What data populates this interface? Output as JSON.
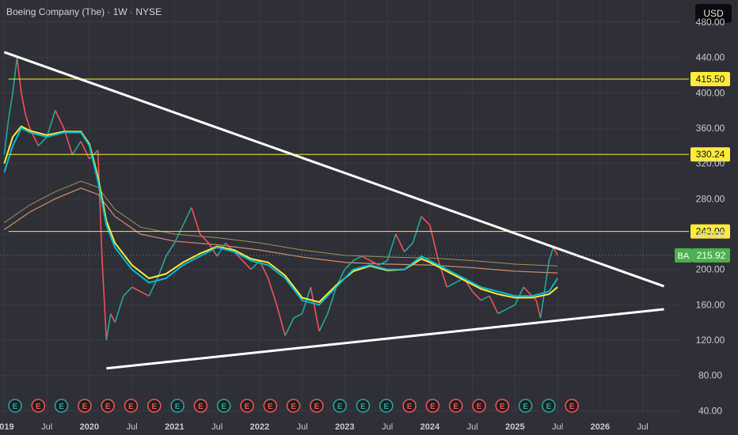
{
  "header": {
    "title": "Boeing Company (The) · 1W · NYSE"
  },
  "currency_button": "USD",
  "chart_data": {
    "type": "line",
    "title": "",
    "ticker": "BA",
    "last_price": 215.92,
    "last_price_label": "215.92",
    "ylim": [
      35,
      505
    ],
    "xlim": [
      2018.95,
      2026.95
    ],
    "y_ticks": [
      "480.00",
      "440.00",
      "400.00",
      "360.00",
      "320.00",
      "280.00",
      "240.00",
      "200.00",
      "160.00",
      "120.00",
      "80.00",
      "40.00"
    ],
    "x_ticks": [
      {
        "label": "2019",
        "x": 2019.0
      },
      {
        "label": "Jul",
        "x": 2019.5
      },
      {
        "label": "2020",
        "x": 2020.0
      },
      {
        "label": "Jul",
        "x": 2020.5
      },
      {
        "label": "2021",
        "x": 2021.0
      },
      {
        "label": "Jul",
        "x": 2021.5
      },
      {
        "label": "2022",
        "x": 2022.0
      },
      {
        "label": "Jul",
        "x": 2022.5
      },
      {
        "label": "2023",
        "x": 2023.0
      },
      {
        "label": "Jul",
        "x": 2023.5
      },
      {
        "label": "2024",
        "x": 2024.0
      },
      {
        "label": "Jul",
        "x": 2024.5
      },
      {
        "label": "2025",
        "x": 2025.0
      },
      {
        "label": "Jul",
        "x": 2025.5
      },
      {
        "label": "2026",
        "x": 2026.0
      },
      {
        "label": "Jul",
        "x": 2026.5
      }
    ],
    "price_series": {
      "x": [
        2019.0,
        2019.05,
        2019.1,
        2019.15,
        2019.2,
        2019.25,
        2019.3,
        2019.4,
        2019.5,
        2019.6,
        2019.7,
        2019.8,
        2019.9,
        2020.0,
        2020.1,
        2020.15,
        2020.2,
        2020.25,
        2020.3,
        2020.4,
        2020.5,
        2020.6,
        2020.7,
        2020.8,
        2020.9,
        2021.0,
        2021.1,
        2021.2,
        2021.3,
        2021.4,
        2021.5,
        2021.6,
        2021.7,
        2021.8,
        2021.9,
        2022.0,
        2022.1,
        2022.2,
        2022.3,
        2022.4,
        2022.5,
        2022.6,
        2022.7,
        2022.8,
        2022.9,
        2023.0,
        2023.1,
        2023.2,
        2023.3,
        2023.4,
        2023.5,
        2023.6,
        2023.7,
        2023.8,
        2023.9,
        2024.0,
        2024.1,
        2024.2,
        2024.3,
        2024.4,
        2024.5,
        2024.6,
        2024.7,
        2024.8,
        2024.9,
        2025.0,
        2025.1,
        2025.2,
        2025.25,
        2025.3,
        2025.4,
        2025.45,
        2025.5
      ],
      "y": [
        330,
        370,
        400,
        440,
        400,
        375,
        360,
        340,
        350,
        380,
        360,
        330,
        345,
        325,
        335,
        210,
        120,
        150,
        140,
        170,
        180,
        175,
        170,
        190,
        215,
        230,
        250,
        270,
        240,
        230,
        215,
        230,
        220,
        210,
        200,
        210,
        190,
        160,
        125,
        145,
        150,
        180,
        130,
        150,
        180,
        200,
        210,
        215,
        210,
        205,
        210,
        240,
        220,
        230,
        260,
        250,
        210,
        180,
        185,
        190,
        175,
        165,
        170,
        150,
        155,
        160,
        180,
        170,
        165,
        145,
        210,
        225,
        216
      ]
    },
    "ma_fast": {
      "x": [
        2019.0,
        2019.1,
        2019.2,
        2019.3,
        2019.5,
        2019.7,
        2019.9,
        2020.0,
        2020.1,
        2020.2,
        2020.3,
        2020.5,
        2020.7,
        2020.9,
        2021.1,
        2021.3,
        2021.5,
        2021.7,
        2021.9,
        2022.1,
        2022.3,
        2022.5,
        2022.7,
        2022.9,
        2023.1,
        2023.3,
        2023.5,
        2023.7,
        2023.9,
        2024.0,
        2024.2,
        2024.4,
        2024.6,
        2024.8,
        2025.0,
        2025.2,
        2025.4,
        2025.5
      ],
      "y": [
        310,
        340,
        360,
        355,
        350,
        355,
        355,
        340,
        300,
        250,
        225,
        200,
        185,
        190,
        205,
        215,
        225,
        220,
        210,
        205,
        190,
        165,
        160,
        180,
        200,
        205,
        200,
        200,
        215,
        210,
        200,
        190,
        180,
        175,
        170,
        170,
        175,
        190
      ]
    },
    "ma_slow": {
      "x": [
        2019.0,
        2019.1,
        2019.2,
        2019.3,
        2019.5,
        2019.7,
        2019.9,
        2020.0,
        2020.1,
        2020.2,
        2020.3,
        2020.5,
        2020.7,
        2020.9,
        2021.1,
        2021.3,
        2021.5,
        2021.7,
        2021.9,
        2022.1,
        2022.3,
        2022.5,
        2022.7,
        2022.9,
        2023.1,
        2023.3,
        2023.5,
        2023.7,
        2023.9,
        2024.0,
        2024.2,
        2024.4,
        2024.6,
        2024.8,
        2025.0,
        2025.2,
        2025.4,
        2025.5
      ],
      "y": [
        320,
        350,
        362,
        357,
        352,
        356,
        356,
        342,
        305,
        255,
        230,
        205,
        190,
        195,
        208,
        218,
        226,
        222,
        212,
        208,
        193,
        168,
        163,
        182,
        198,
        204,
        199,
        200,
        212,
        208,
        198,
        188,
        178,
        172,
        168,
        168,
        172,
        180
      ]
    },
    "ma_long": {
      "x": [
        2019.0,
        2019.3,
        2019.6,
        2019.9,
        2020.1,
        2020.3,
        2020.6,
        2021.0,
        2021.5,
        2022.0,
        2022.5,
        2023.0,
        2023.5,
        2024.0,
        2024.5,
        2025.0,
        2025.5
      ],
      "y": [
        245,
        265,
        280,
        292,
        285,
        260,
        240,
        232,
        228,
        222,
        214,
        208,
        206,
        205,
        202,
        198,
        196
      ]
    },
    "resistance_levels": [
      {
        "label": "415.50",
        "value": 415.5
      },
      {
        "label": "330.24",
        "value": 330.24
      },
      {
        "label": "243.00",
        "value": 243.0
      }
    ],
    "trendlines": [
      {
        "from": {
          "x": 2019.0,
          "y": 446
        },
        "to": {
          "x": 2026.75,
          "y": 181
        }
      },
      {
        "from": {
          "x": 2020.2,
          "y": 88
        },
        "to": {
          "x": 2026.75,
          "y": 155
        }
      }
    ],
    "earnings_markers": [
      {
        "label": "E",
        "type": "beat"
      },
      {
        "label": "E",
        "type": "miss"
      },
      {
        "label": "E",
        "type": "beat"
      },
      {
        "label": "E",
        "type": "miss"
      },
      {
        "label": "E",
        "type": "miss"
      },
      {
        "label": "E",
        "type": "miss"
      },
      {
        "label": "E",
        "type": "miss"
      },
      {
        "label": "E",
        "type": "beat"
      },
      {
        "label": "E",
        "type": "miss"
      },
      {
        "label": "E",
        "type": "beat"
      },
      {
        "label": "E",
        "type": "miss"
      },
      {
        "label": "E",
        "type": "miss"
      },
      {
        "label": "E",
        "type": "miss"
      },
      {
        "label": "E",
        "type": "miss"
      },
      {
        "label": "E",
        "type": "beat"
      },
      {
        "label": "E",
        "type": "beat"
      },
      {
        "label": "E",
        "type": "beat"
      },
      {
        "label": "E",
        "type": "miss"
      },
      {
        "label": "E",
        "type": "miss"
      },
      {
        "label": "E",
        "type": "miss"
      },
      {
        "label": "E",
        "type": "miss"
      },
      {
        "label": "E",
        "type": "miss"
      },
      {
        "label": "E",
        "type": "beat"
      },
      {
        "label": "E",
        "type": "beat"
      },
      {
        "label": "E",
        "type": "miss"
      }
    ],
    "colors": {
      "background": "#2f2f37",
      "grid": "#3a3a42",
      "up": "#26a69a",
      "down": "#ef5350",
      "ma_fast": "#00bcd4",
      "ma_slow": "#ffeb3b",
      "ma_long": "#f0a070",
      "ma_long2": "#f5d46b",
      "level": "#ffeb3b",
      "trend": "#ffffff",
      "price_label": "#4caf50"
    }
  }
}
